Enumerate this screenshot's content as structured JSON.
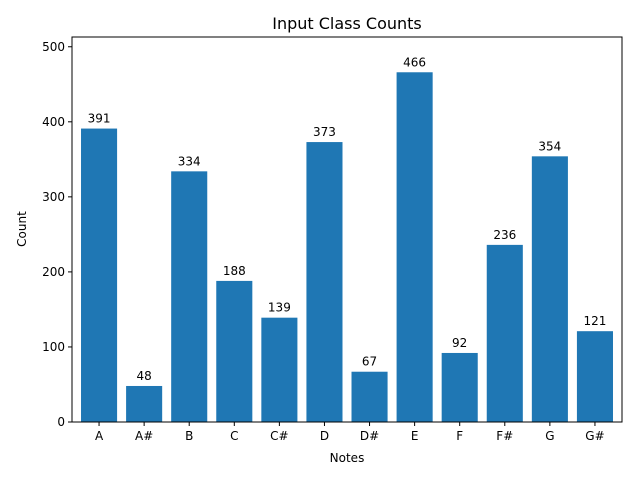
{
  "chart_data": {
    "type": "bar",
    "title": "Input Class Counts",
    "xlabel": "Notes",
    "ylabel": "Count",
    "categories": [
      "A",
      "A#",
      "B",
      "C",
      "C#",
      "D",
      "D#",
      "E",
      "F",
      "F#",
      "G",
      "G#"
    ],
    "values": [
      391,
      48,
      334,
      188,
      139,
      373,
      67,
      466,
      92,
      236,
      354,
      121
    ],
    "ylim": [
      0,
      513
    ],
    "yticks": [
      0,
      100,
      200,
      300,
      400,
      500
    ],
    "bar_color": "#1f77b4",
    "grid": false,
    "legend": "none",
    "data_labels": true
  }
}
